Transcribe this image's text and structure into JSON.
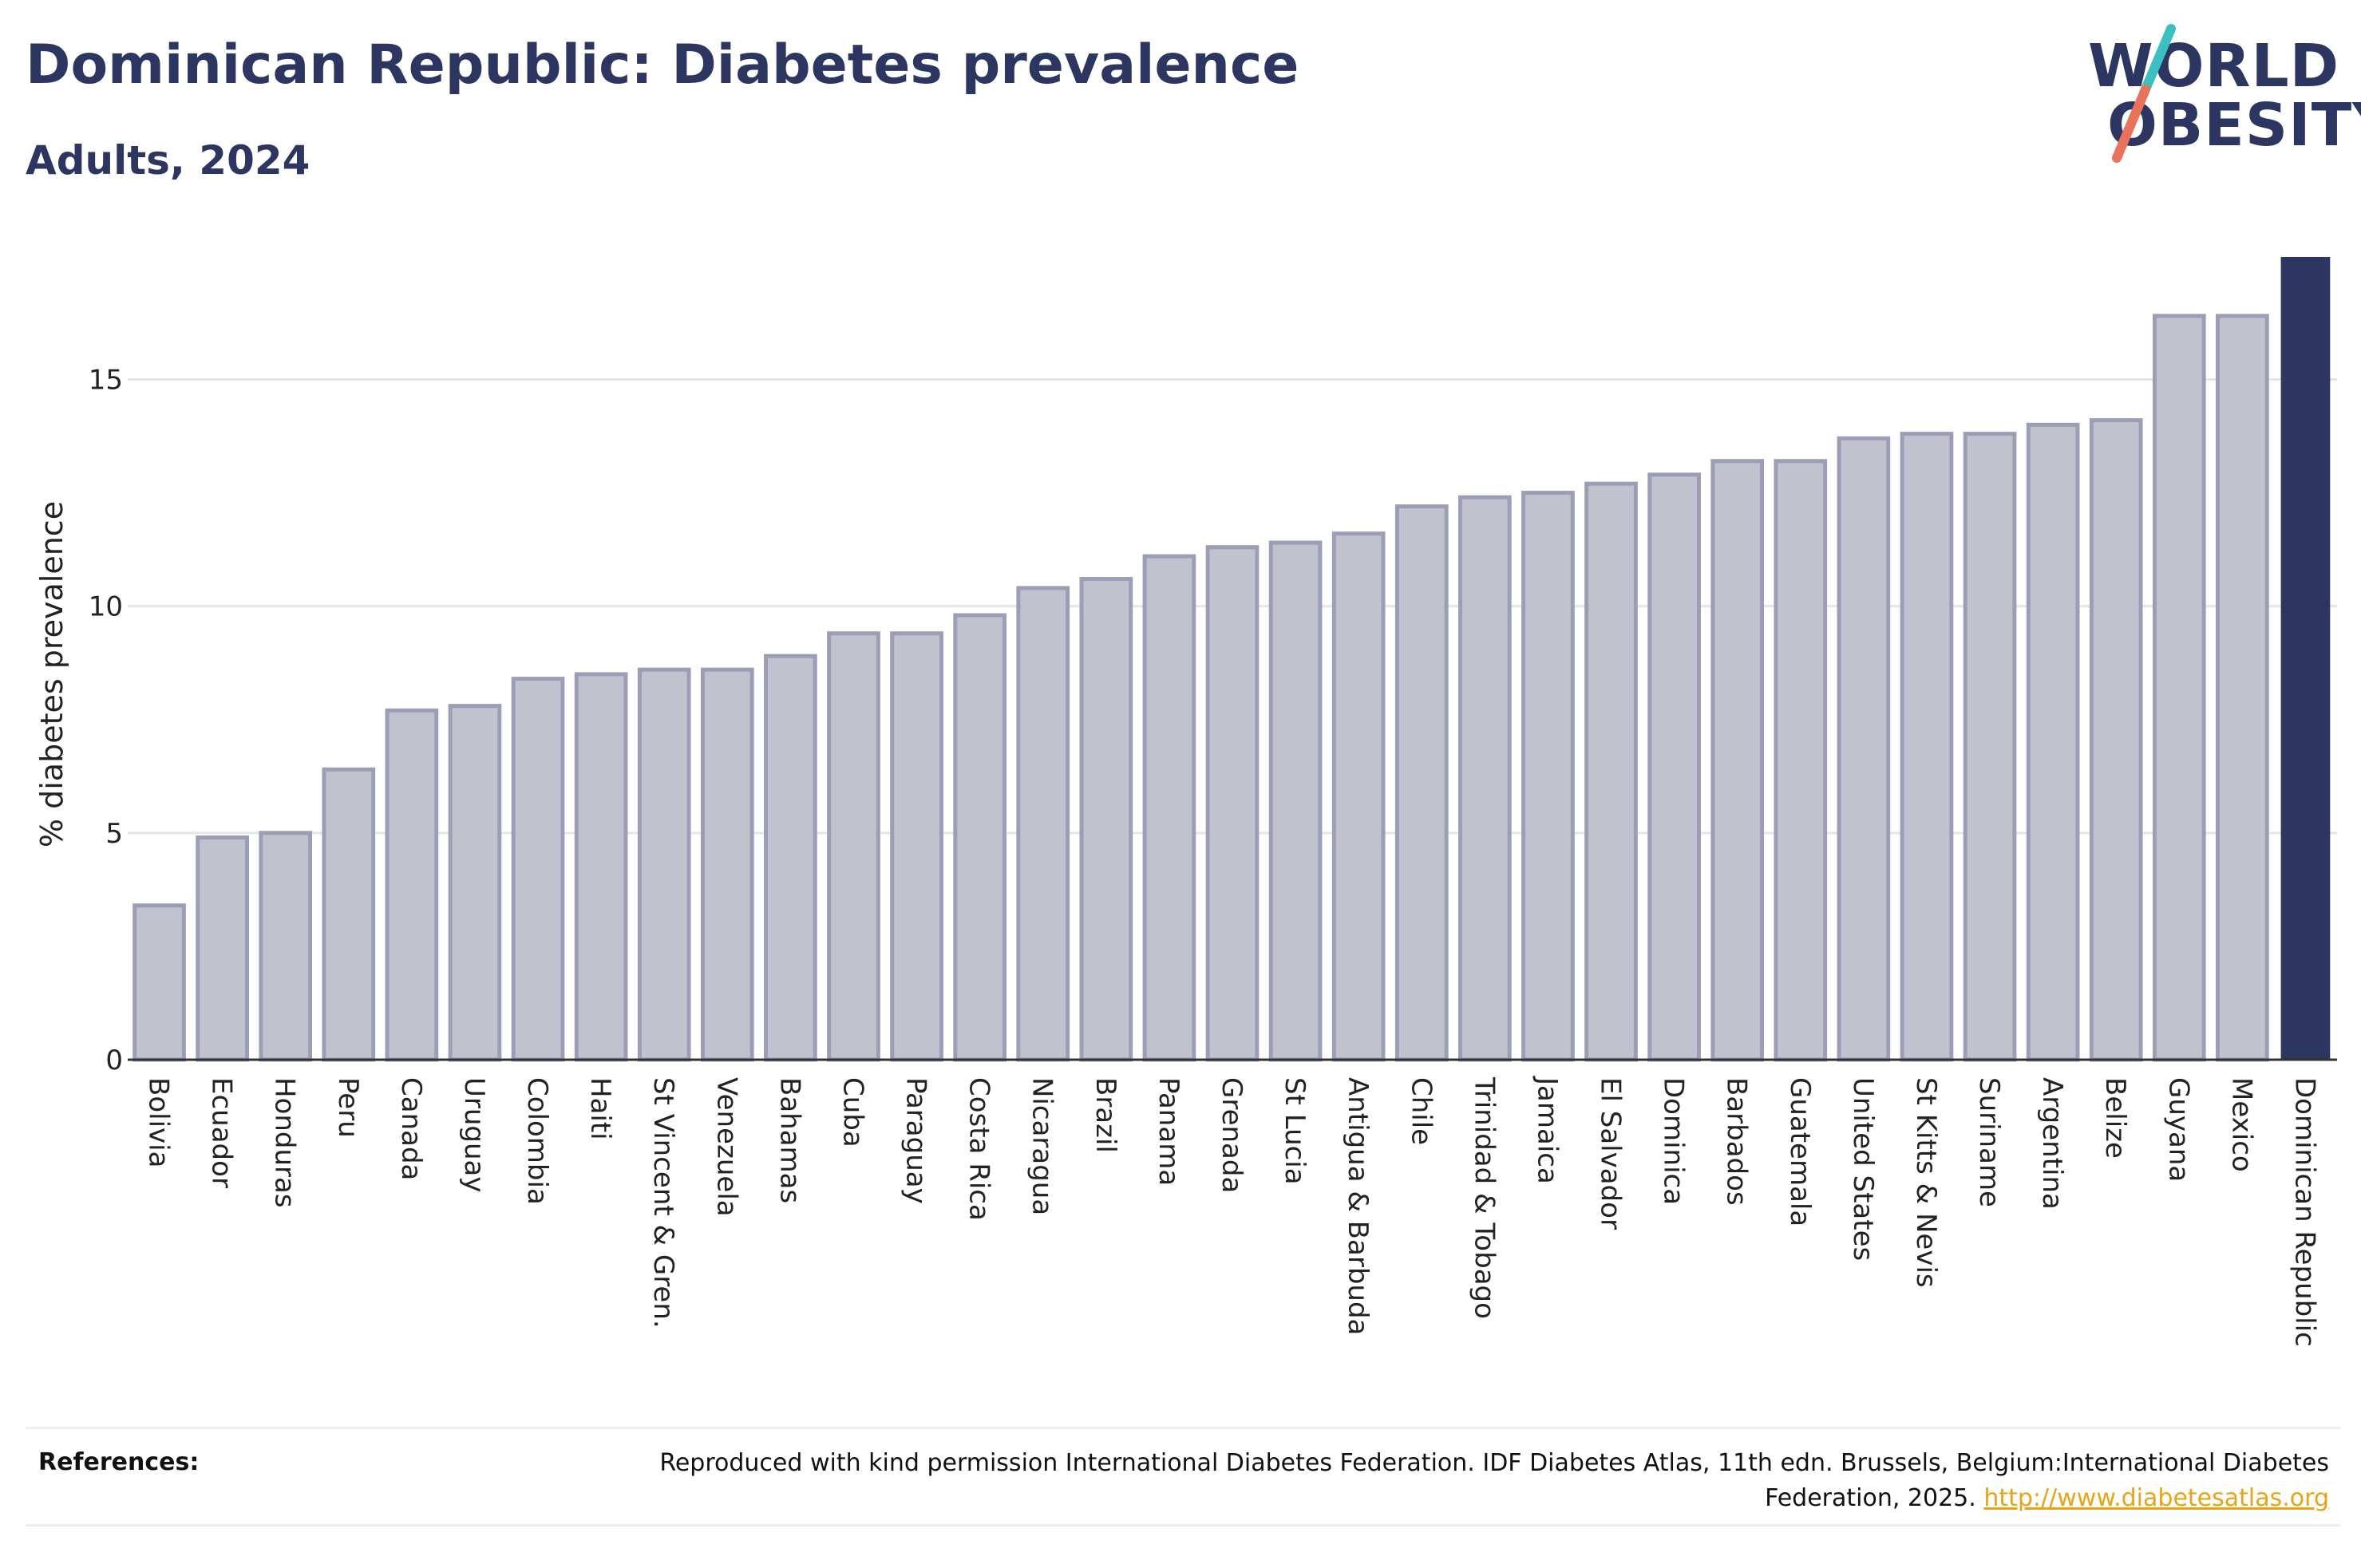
{
  "header": {
    "title": "Dominican Republic: Diabetes prevalence",
    "subtitle": "Adults, 2024"
  },
  "logo": {
    "line1": "WORLD",
    "line2": "OBESITY",
    "slash_colors": [
      "#3bbfc1",
      "#e8735a"
    ]
  },
  "colors": {
    "bar_default": "#c0c2ce",
    "bar_border": "#9a9eb7",
    "bar_highlight": "#2d3660",
    "text": "#2d3660",
    "link": "#e8a417"
  },
  "chart_data": {
    "type": "bar",
    "ylabel": "% diabetes prevalence",
    "xlabel": "",
    "ylim": [
      0,
      17.7
    ],
    "yticks": [
      0,
      5,
      10,
      15
    ],
    "grid": true,
    "highlight": "Dominican Republic",
    "categories": [
      "Bolivia",
      "Ecuador",
      "Honduras",
      "Peru",
      "Canada",
      "Uruguay",
      "Colombia",
      "Haiti",
      "St Vincent & Gren.",
      "Venezuela",
      "Bahamas",
      "Cuba",
      "Paraguay",
      "Costa Rica",
      "Nicaragua",
      "Brazil",
      "Panama",
      "Grenada",
      "St Lucia",
      "Antigua & Barbuda",
      "Chile",
      "Trinidad & Tobago",
      "Jamaica",
      "El Salvador",
      "Dominica",
      "Barbados",
      "Guatemala",
      "United States",
      "St Kitts & Nevis",
      "Suriname",
      "Argentina",
      "Belize",
      "Guyana",
      "Mexico",
      "Dominican Republic"
    ],
    "values": [
      3.4,
      4.9,
      5.0,
      6.4,
      7.7,
      7.8,
      8.4,
      8.5,
      8.6,
      8.6,
      8.9,
      9.4,
      9.4,
      9.8,
      10.4,
      10.6,
      11.1,
      11.3,
      11.4,
      11.6,
      12.2,
      12.4,
      12.5,
      12.7,
      12.9,
      13.2,
      13.2,
      13.7,
      13.8,
      13.8,
      14.0,
      14.1,
      16.4,
      16.4,
      17.7
    ]
  },
  "references": {
    "label": "References:",
    "text": "Reproduced with kind permission International Diabetes Federation. IDF Diabetes Atlas, 11th edn. Brussels, Belgium:International Diabetes Federation, 2025.",
    "link": "http://www.diabetesatlas.org"
  }
}
